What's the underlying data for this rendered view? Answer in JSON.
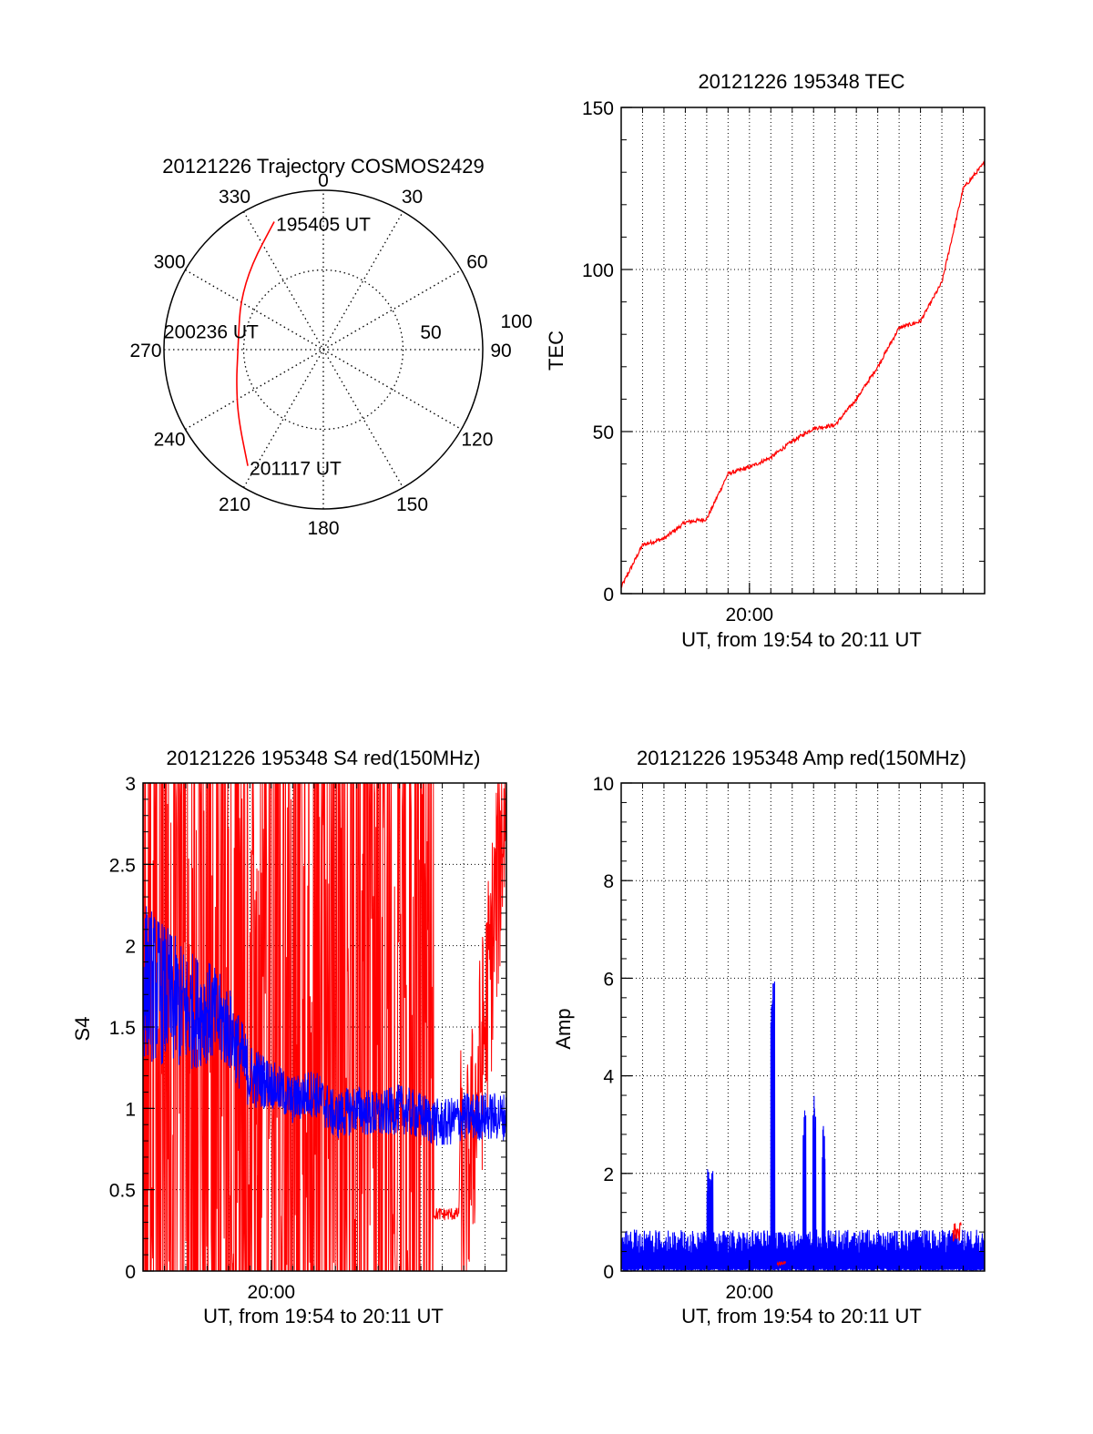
{
  "chart_data": [
    {
      "type": "polar",
      "title": "20121226 Trajectory COSMOS2429",
      "angle_labels": [
        "0",
        "30",
        "60",
        "90",
        "120",
        "150",
        "180",
        "210",
        "240",
        "270",
        "300",
        "330"
      ],
      "radius_labels": [
        "50",
        "100"
      ],
      "rlim": [
        0,
        100
      ],
      "grid": true,
      "series": [
        {
          "color": "#ff0000",
          "points": [
            {
              "az": 339,
              "r": 86
            },
            {
              "az": 320,
              "r": 70
            },
            {
              "az": 300,
              "r": 60
            },
            {
              "az": 280,
              "r": 54
            },
            {
              "az": 265,
              "r": 54
            },
            {
              "az": 250,
              "r": 58
            },
            {
              "az": 232,
              "r": 68
            },
            {
              "az": 213,
              "r": 87
            }
          ]
        }
      ],
      "annotations": [
        {
          "text": "195405 UT",
          "az": 339,
          "r": 86
        },
        {
          "text": "200236 UT",
          "az": 280,
          "r": 54
        },
        {
          "text": "201117 UT",
          "az": 213,
          "r": 87
        }
      ]
    },
    {
      "type": "line",
      "title": "20121226 195348 TEC",
      "xlabel": "UT, from 19:54 to 20:11 UT",
      "ylabel": "TEC",
      "xlim": [
        "19:54",
        "20:11"
      ],
      "ylim": [
        0,
        150
      ],
      "yticks": [
        "0",
        "50",
        "100",
        "150"
      ],
      "xticks": [
        "20:00"
      ],
      "grid": true,
      "series": [
        {
          "color": "#ff0000",
          "x": [
            "19:54",
            "19:55",
            "19:56",
            "19:57",
            "19:58",
            "19:59",
            "20:00",
            "20:01",
            "20:02",
            "20:03",
            "20:04",
            "20:05",
            "20:06",
            "20:07",
            "20:08",
            "20:09",
            "20:10",
            "20:11"
          ],
          "values": [
            2,
            15,
            17,
            22,
            23,
            37,
            39,
            42,
            47,
            51,
            52,
            60,
            70,
            82,
            84,
            96,
            125,
            133
          ]
        }
      ]
    },
    {
      "type": "line",
      "title": "20121226 195348 S4 red(150MHz)",
      "xlabel": "UT, from 19:54 to 20:11 UT",
      "ylabel": "S4",
      "xlim": [
        "19:54",
        "20:11"
      ],
      "ylim": [
        0,
        3
      ],
      "yticks": [
        "0",
        "0.5",
        "1",
        "1.5",
        "2",
        "2.5",
        "3"
      ],
      "xticks": [
        "20:00"
      ],
      "grid": true,
      "series": [
        {
          "color": "#ff0000",
          "x": [
            "19:54",
            "19:55",
            "19:56",
            "19:57",
            "19:58",
            "19:59",
            "20:00",
            "20:01",
            "20:02",
            "20:03",
            "20:04",
            "20:05",
            "20:06",
            "20:07",
            "20:08",
            "20:09",
            "20:10",
            "20:11"
          ],
          "values": [
            1.5,
            3.0,
            0.0,
            3.0,
            0.0,
            3.0,
            0.0,
            3.0,
            0.0,
            3.0,
            0.0,
            3.0,
            3.0,
            3.0,
            2.5,
            0.35,
            1.5,
            3.0
          ]
        },
        {
          "color": "#0000ff",
          "x": [
            "19:54",
            "19:55",
            "19:56",
            "19:57",
            "19:58",
            "19:59",
            "20:00",
            "20:01",
            "20:02",
            "20:03",
            "20:04",
            "20:05",
            "20:06",
            "20:07",
            "20:08",
            "20:09",
            "20:10",
            "20:11"
          ],
          "values": [
            1.8,
            1.7,
            1.6,
            1.6,
            1.5,
            1.2,
            1.15,
            1.05,
            1.1,
            0.95,
            1.0,
            0.95,
            1.0,
            0.95,
            0.9,
            0.95,
            0.95,
            0.95
          ]
        }
      ]
    },
    {
      "type": "line",
      "title": "20121226 195348 Amp red(150MHz)",
      "xlabel": "UT, from 19:54 to 20:11 UT",
      "ylabel": "Amp",
      "xlim": [
        "19:54",
        "20:11"
      ],
      "ylim": [
        0,
        10
      ],
      "yticks": [
        "0",
        "2",
        "4",
        "6",
        "8",
        "10"
      ],
      "xticks": [
        "20:00"
      ],
      "grid": true,
      "series": [
        {
          "color": "#ff0000",
          "x": [
            "20:01",
            "20:09"
          ],
          "values": [
            0.2,
            1.0
          ]
        },
        {
          "color": "#0000ff",
          "x": [
            "19:54",
            "19:55",
            "19:56",
            "19:57",
            "19:58",
            "19:59",
            "20:00",
            "20:01",
            "20:02",
            "20:03",
            "20:04",
            "20:05",
            "20:06",
            "20:07",
            "20:08",
            "20:09",
            "20:10",
            "20:11"
          ],
          "values": [
            0.6,
            0.6,
            0.6,
            0.6,
            2.1,
            0.6,
            0.6,
            6.7,
            0.6,
            3.9,
            3.0,
            0.6,
            0.7,
            0.7,
            0.7,
            0.8,
            0.8,
            0.8
          ]
        }
      ]
    }
  ]
}
